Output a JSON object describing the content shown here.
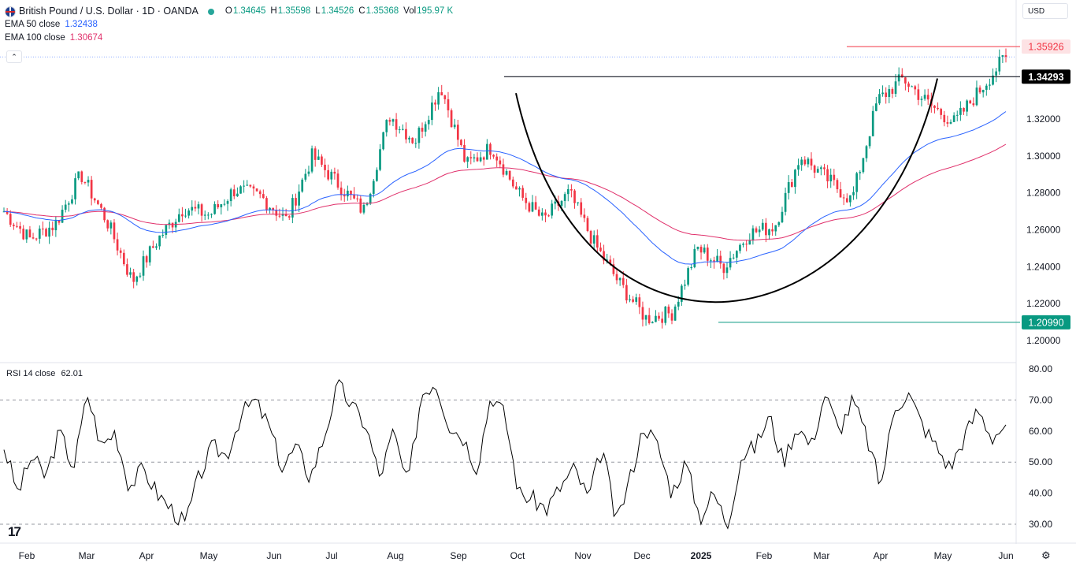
{
  "header": {
    "title": "British Pound / U.S. Dollar · 1D · OANDA",
    "ohlc": [
      {
        "k": "O",
        "v": "1.34645"
      },
      {
        "k": "H",
        "v": "1.35598"
      },
      {
        "k": "L",
        "v": "1.34526"
      },
      {
        "k": "C",
        "v": "1.35368"
      },
      {
        "k": "Vol",
        "v": "195.97 K"
      }
    ],
    "currency": "USD"
  },
  "indicators": {
    "ema50": {
      "label": "EMA 50 close",
      "value": "1.32438"
    },
    "ema100": {
      "label": "EMA 100 close",
      "value": "1.30674"
    },
    "rsi": {
      "label": "RSI 14 close",
      "value": "62.01"
    }
  },
  "colors": {
    "up": "#089981",
    "down": "#f23645",
    "ema50": "#2962ff",
    "ema100": "#e0306b",
    "resistance": "#131722",
    "support": "#089981",
    "high_marker": "#f23645",
    "text": "#131722"
  },
  "chart_data": [
    {
      "type": "candlestick",
      "title": "",
      "ylim": [
        1.19,
        1.362
      ],
      "y_ticks": [
        "1.20000",
        "1.22000",
        "1.24000",
        "1.26000",
        "1.28000",
        "1.30000",
        "1.32000"
      ],
      "x_ticks": [
        "Feb",
        "Mar",
        "Apr",
        "May",
        "Jun",
        "Jul",
        "Aug",
        "Sep",
        "Oct",
        "Nov",
        "Dec",
        "2025",
        "Feb",
        "Mar",
        "Apr",
        "May",
        "Jun"
      ],
      "price_labels": [
        {
          "label": "1.35926",
          "value": 1.35926,
          "style": "high"
        },
        {
          "label": "1.34293",
          "value": 1.34293,
          "style": "resistance"
        },
        {
          "label": "1.20990",
          "value": 1.2099,
          "style": "support"
        }
      ],
      "last_close": 1.35368,
      "key_points": [
        1.27,
        1.255,
        1.263,
        1.29,
        1.265,
        1.232,
        1.255,
        1.272,
        1.268,
        1.282,
        1.278,
        1.265,
        1.3,
        1.285,
        1.27,
        1.322,
        1.308,
        1.338,
        1.295,
        1.305,
        1.28,
        1.265,
        1.28,
        1.252,
        1.23,
        1.212,
        1.215,
        1.25,
        1.24,
        1.258,
        1.262,
        1.3,
        1.288,
        1.276,
        1.33,
        1.342,
        1.328,
        1.318,
        1.336,
        1.354
      ],
      "ema_visible": true,
      "pattern": "cup (curved line from 1.34293 down to 1.20990 and back up)"
    },
    {
      "type": "line",
      "title": "RSI",
      "ylim": [
        28,
        80
      ],
      "y_ticks": [
        "30.00",
        "40.00",
        "50.00",
        "60.00",
        "70.00",
        "80.00"
      ],
      "levels": [
        30,
        50,
        70
      ],
      "last_value": 62.01,
      "key_points": [
        55,
        40,
        52,
        45,
        60,
        48,
        72,
        55,
        60,
        42,
        48,
        40,
        35,
        30,
        45,
        55,
        52,
        65,
        70,
        62,
        48,
        55,
        45,
        58,
        75,
        68,
        62,
        45,
        60,
        42,
        72,
        76,
        62,
        58,
        48,
        72,
        65,
        40,
        38,
        35,
        42,
        48,
        38,
        55,
        30,
        45,
        62,
        55,
        40,
        50,
        32,
        40,
        30,
        52,
        55,
        65,
        50,
        62,
        55,
        72,
        60,
        70,
        58,
        42,
        68,
        72,
        62,
        55,
        48,
        58,
        67,
        58,
        62
      ]
    }
  ]
}
